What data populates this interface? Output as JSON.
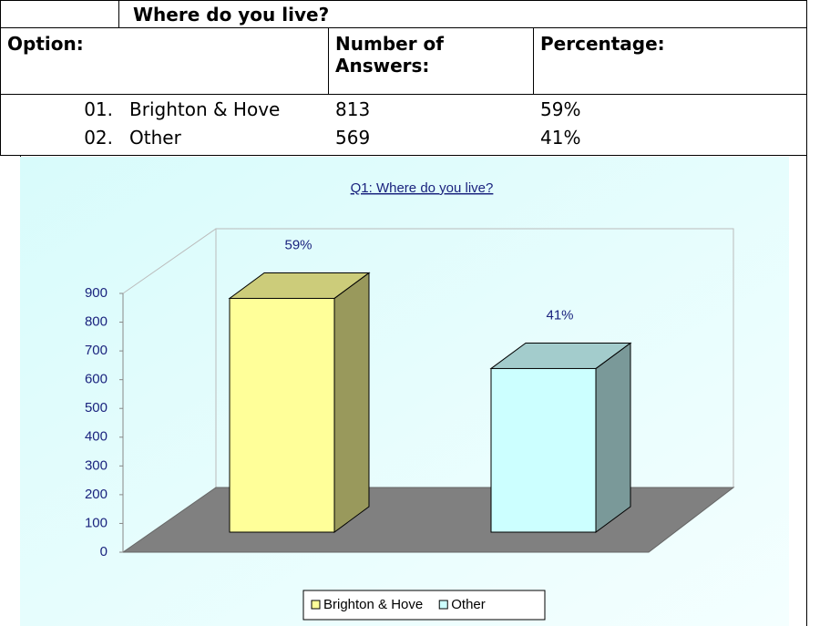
{
  "table": {
    "title": "Where do you live?",
    "headers": [
      "Option:",
      "Number of Answers:",
      "Percentage:"
    ],
    "rows": [
      [
        "01.",
        "Brighton & Hove",
        "813",
        "59%"
      ],
      [
        "02.",
        "Other",
        "569",
        "41%"
      ]
    ]
  },
  "chart_data": {
    "type": "bar",
    "title": "Q1: Where do you live?",
    "categories": [
      "Brighton & Hove",
      "Other"
    ],
    "values": [
      813,
      569
    ],
    "data_labels": [
      "59%",
      "41%"
    ],
    "colors": [
      "#ffff99",
      "#ccffff"
    ],
    "ylim": [
      0,
      900
    ],
    "yticks": [
      0,
      100,
      200,
      300,
      400,
      500,
      600,
      700,
      800,
      900
    ],
    "legend": "bottom"
  }
}
